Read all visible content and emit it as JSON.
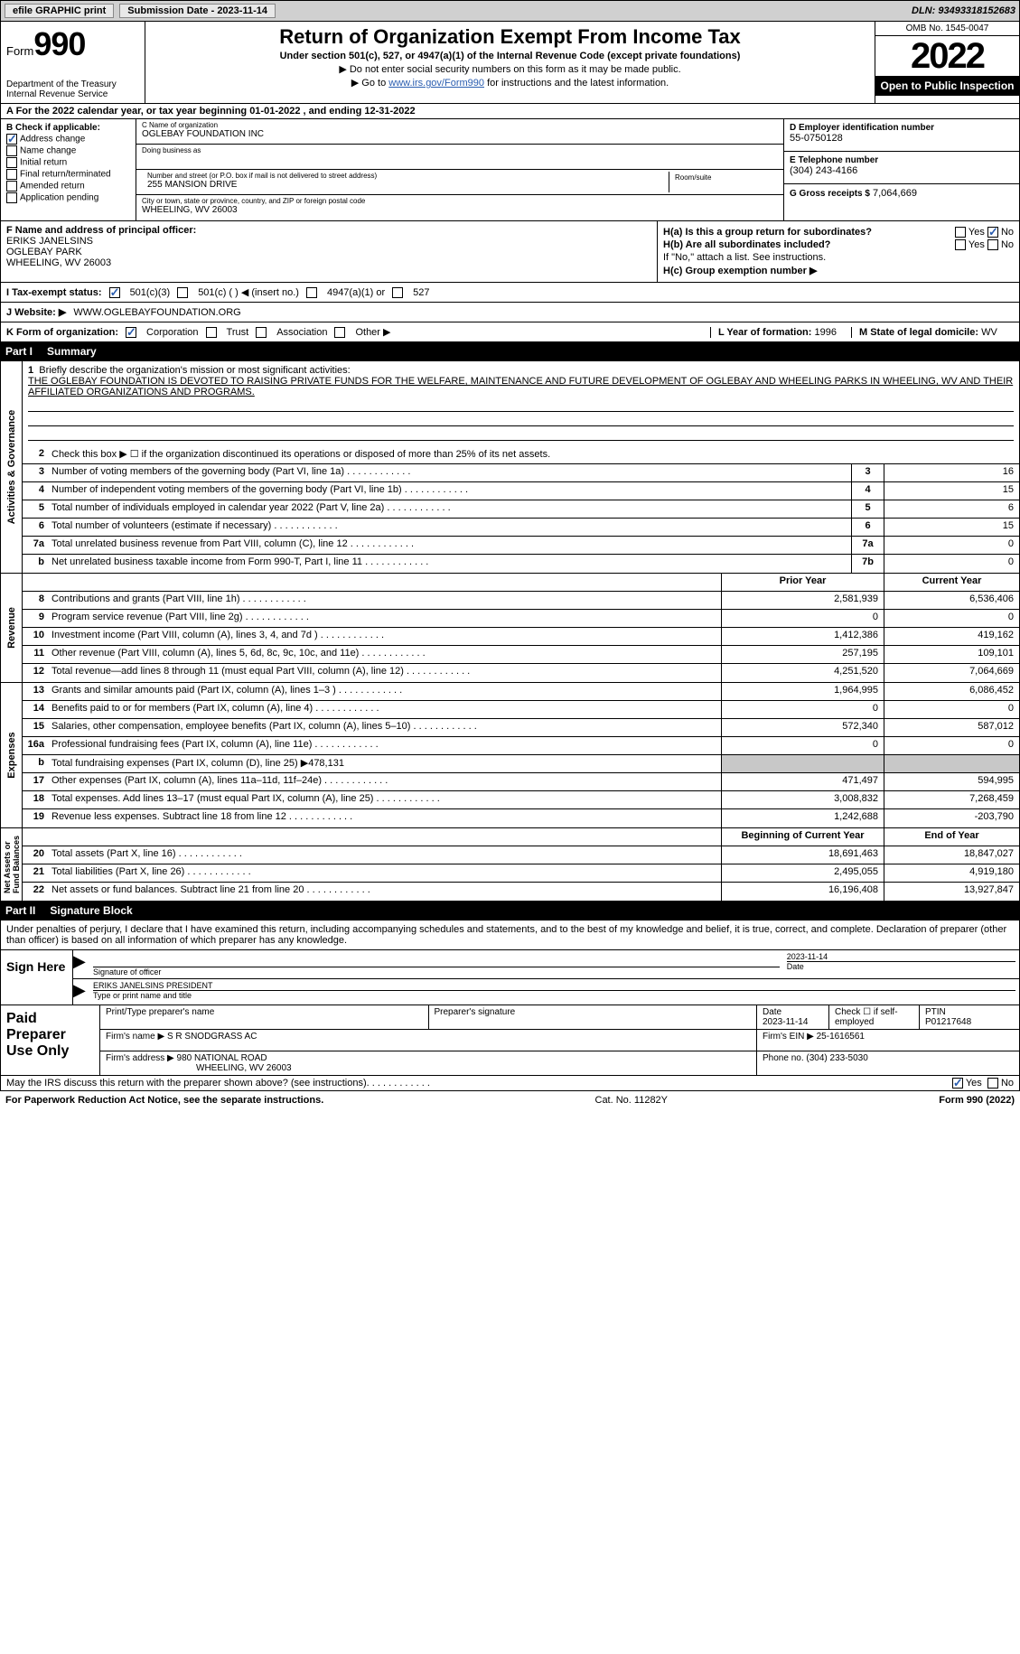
{
  "topbar": {
    "efile": "efile GRAPHIC print",
    "submission": "Submission Date - 2023-11-14",
    "dln": "DLN: 93493318152683"
  },
  "header": {
    "form": "Form",
    "formno": "990",
    "title": "Return of Organization Exempt From Income Tax",
    "subtitle": "Under section 501(c), 527, or 4947(a)(1) of the Internal Revenue Code (except private foundations)",
    "note1": "▶ Do not enter social security numbers on this form as it may be made public.",
    "note2_pre": "▶ Go to ",
    "note2_link": "www.irs.gov/Form990",
    "note2_post": " for instructions and the latest information.",
    "dept": "Department of the Treasury\nInternal Revenue Service",
    "omb": "OMB No. 1545-0047",
    "year": "2022",
    "open": "Open to Public Inspection"
  },
  "lineA": "A For the 2022 calendar year, or tax year beginning 01-01-2022    , and ending 12-31-2022",
  "sectionB": {
    "label": "B Check if applicable:",
    "opts": [
      "Address change",
      "Name change",
      "Initial return",
      "Final return/terminated",
      "Amended return",
      "Application pending"
    ],
    "checked_idx": 0
  },
  "sectionC": {
    "name_label": "C Name of organization",
    "name": "OGLEBAY FOUNDATION INC",
    "dba_label": "Doing business as",
    "dba": "",
    "addr_label": "Number and street (or P.O. box if mail is not delivered to street address)",
    "addr": "255 MANSION DRIVE",
    "room_label": "Room/suite",
    "city_label": "City or town, state or province, country, and ZIP or foreign postal code",
    "city": "WHEELING, WV  26003"
  },
  "sectionD": {
    "ein_label": "D Employer identification number",
    "ein": "55-0750128",
    "tel_label": "E Telephone number",
    "tel": "(304) 243-4166",
    "gross_label": "G Gross receipts $",
    "gross": "7,064,669"
  },
  "sectionF": {
    "label": "F  Name and address of principal officer:",
    "name": "ERIKS JANELSINS",
    "addr1": "OGLEBAY PARK",
    "addr2": "WHEELING, WV  26003"
  },
  "sectionH": {
    "ha": "H(a)  Is this a group return for subordinates?",
    "ha_yes": "Yes",
    "ha_no": "No",
    "hb": "H(b)  Are all subordinates included?",
    "hb_note": "If \"No,\" attach a list. See instructions.",
    "hc": "H(c)  Group exemption number ▶"
  },
  "rowI": {
    "label": "I   Tax-exempt status:",
    "opt1": "501(c)(3)",
    "opt2": "501(c) (  ) ◀ (insert no.)",
    "opt3": "4947(a)(1) or",
    "opt4": "527"
  },
  "rowJ": {
    "label": "J   Website: ▶",
    "value": "WWW.OGLEBAYFOUNDATION.ORG"
  },
  "rowK": {
    "label": "K Form of organization:",
    "opts": [
      "Corporation",
      "Trust",
      "Association",
      "Other ▶"
    ],
    "L_label": "L Year of formation:",
    "L_val": "1996",
    "M_label": "M State of legal domicile:",
    "M_val": "WV"
  },
  "part1": {
    "label": "Part I",
    "title": "Summary"
  },
  "mission": {
    "num": "1",
    "label": "Briefly describe the organization's mission or most significant activities:",
    "text": "THE OGLEBAY FOUNDATION IS DEVOTED TO RAISING PRIVATE FUNDS FOR THE WELFARE, MAINTENANCE AND FUTURE DEVELOPMENT OF OGLEBAY AND WHEELING PARKS IN WHEELING, WV AND THEIR AFFILIATED ORGANIZATIONS AND PROGRAMS."
  },
  "gov_rows": [
    {
      "num": "2",
      "desc": "Check this box ▶ ☐  if the organization discontinued its operations or disposed of more than 25% of its net assets."
    },
    {
      "num": "3",
      "desc": "Number of voting members of the governing body (Part VI, line 1a)",
      "box": "3",
      "val": "16"
    },
    {
      "num": "4",
      "desc": "Number of independent voting members of the governing body (Part VI, line 1b)",
      "box": "4",
      "val": "15"
    },
    {
      "num": "5",
      "desc": "Total number of individuals employed in calendar year 2022 (Part V, line 2a)",
      "box": "5",
      "val": "6"
    },
    {
      "num": "6",
      "desc": "Total number of volunteers (estimate if necessary)",
      "box": "6",
      "val": "15"
    },
    {
      "num": "7a",
      "desc": "Total unrelated business revenue from Part VIII, column (C), line 12",
      "box": "7a",
      "val": "0"
    },
    {
      "num": "b",
      "desc": "Net unrelated business taxable income from Form 990-T, Part I, line 11",
      "box": "7b",
      "val": "0"
    }
  ],
  "rev_hdr": {
    "prior": "Prior Year",
    "current": "Current Year"
  },
  "rev_rows": [
    {
      "num": "8",
      "desc": "Contributions and grants (Part VIII, line 1h)",
      "prior": "2,581,939",
      "cur": "6,536,406"
    },
    {
      "num": "9",
      "desc": "Program service revenue (Part VIII, line 2g)",
      "prior": "0",
      "cur": "0"
    },
    {
      "num": "10",
      "desc": "Investment income (Part VIII, column (A), lines 3, 4, and 7d )",
      "prior": "1,412,386",
      "cur": "419,162"
    },
    {
      "num": "11",
      "desc": "Other revenue (Part VIII, column (A), lines 5, 6d, 8c, 9c, 10c, and 11e)",
      "prior": "257,195",
      "cur": "109,101"
    },
    {
      "num": "12",
      "desc": "Total revenue—add lines 8 through 11 (must equal Part VIII, column (A), line 12)",
      "prior": "4,251,520",
      "cur": "7,064,669"
    }
  ],
  "exp_rows": [
    {
      "num": "13",
      "desc": "Grants and similar amounts paid (Part IX, column (A), lines 1–3 )",
      "prior": "1,964,995",
      "cur": "6,086,452"
    },
    {
      "num": "14",
      "desc": "Benefits paid to or for members (Part IX, column (A), line 4)",
      "prior": "0",
      "cur": "0"
    },
    {
      "num": "15",
      "desc": "Salaries, other compensation, employee benefits (Part IX, column (A), lines 5–10)",
      "prior": "572,340",
      "cur": "587,012"
    },
    {
      "num": "16a",
      "desc": "Professional fundraising fees (Part IX, column (A), line 11e)",
      "prior": "0",
      "cur": "0"
    },
    {
      "num": "b",
      "desc": "Total fundraising expenses (Part IX, column (D), line 25) ▶478,131",
      "grey": true
    },
    {
      "num": "17",
      "desc": "Other expenses (Part IX, column (A), lines 11a–11d, 11f–24e)",
      "prior": "471,497",
      "cur": "594,995"
    },
    {
      "num": "18",
      "desc": "Total expenses. Add lines 13–17 (must equal Part IX, column (A), line 25)",
      "prior": "3,008,832",
      "cur": "7,268,459"
    },
    {
      "num": "19",
      "desc": "Revenue less expenses. Subtract line 18 from line 12",
      "prior": "1,242,688",
      "cur": "-203,790"
    }
  ],
  "net_hdr": {
    "begin": "Beginning of Current Year",
    "end": "End of Year"
  },
  "net_rows": [
    {
      "num": "20",
      "desc": "Total assets (Part X, line 16)",
      "prior": "18,691,463",
      "cur": "18,847,027"
    },
    {
      "num": "21",
      "desc": "Total liabilities (Part X, line 26)",
      "prior": "2,495,055",
      "cur": "4,919,180"
    },
    {
      "num": "22",
      "desc": "Net assets or fund balances. Subtract line 21 from line 20",
      "prior": "16,196,408",
      "cur": "13,927,847"
    }
  ],
  "vert": {
    "gov": "Activities & Governance",
    "rev": "Revenue",
    "exp": "Expenses",
    "net": "Net Assets or\nFund Balances"
  },
  "part2": {
    "label": "Part II",
    "title": "Signature Block"
  },
  "decl": "Under penalties of perjury, I declare that I have examined this return, including accompanying schedules and statements, and to the best of my knowledge and belief, it is true, correct, and complete. Declaration of preparer (other than officer) is based on all information of which preparer has any knowledge.",
  "sign": {
    "label": "Sign Here",
    "sig_label": "Signature of officer",
    "date": "2023-11-14",
    "date_label": "Date",
    "name": "ERIKS JANELSINS  PRESIDENT",
    "name_label": "Type or print name and title"
  },
  "paid": {
    "label": "Paid Preparer Use Only",
    "print_label": "Print/Type preparer's name",
    "sig_label": "Preparer's signature",
    "date_label": "Date",
    "date": "2023-11-14",
    "check_label": "Check ☐ if self-employed",
    "ptin_label": "PTIN",
    "ptin": "P01217648",
    "firm_label": "Firm's name     ▶",
    "firm": "S R SNODGRASS AC",
    "ein_label": "Firm's EIN ▶",
    "ein": "25-1616561",
    "addr_label": "Firm's address ▶",
    "addr1": "980 NATIONAL ROAD",
    "addr2": "WHEELING, WV  26003",
    "phone_label": "Phone no.",
    "phone": "(304) 233-5030"
  },
  "footer": {
    "discuss": "May the IRS discuss this return with the preparer shown above? (see instructions)",
    "yes": "Yes",
    "no": "No",
    "paperwork": "For Paperwork Reduction Act Notice, see the separate instructions.",
    "cat": "Cat. No. 11282Y",
    "form": "Form 990 (2022)"
  }
}
